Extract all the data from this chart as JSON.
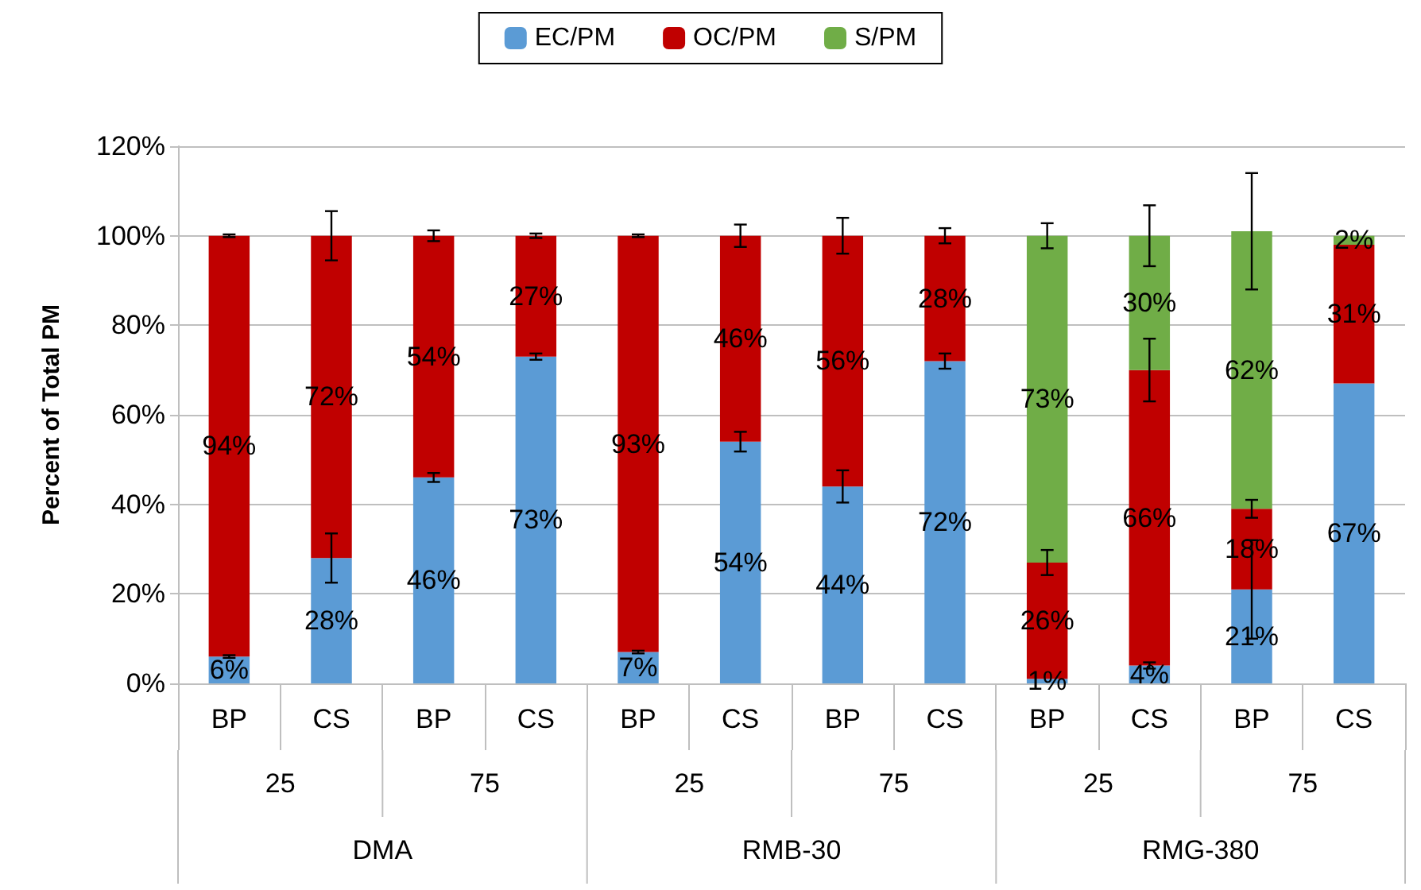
{
  "chart_data": {
    "type": "bar",
    "stacked": true,
    "ylabel": "Percent of Total PM",
    "categories": [
      "BP",
      "CS",
      "BP",
      "CS",
      "BP",
      "CS",
      "BP",
      "CS",
      "BP",
      "CS",
      "BP",
      "CS"
    ],
    "annotations": [
      "25",
      "75",
      "25",
      "75",
      "25",
      "75",
      "DMA",
      "RMB-30",
      "RMG-380"
    ],
    "series": [
      {
        "name": "EC/PM",
        "color": "#5b9bd5",
        "values": [
          6,
          28,
          46,
          73,
          7,
          54,
          44,
          72,
          1,
          4,
          21,
          67
        ],
        "errors": [
          0.3,
          5.5,
          1,
          0.7,
          0.3,
          2.2,
          3.6,
          1.7,
          null,
          0.7,
          11,
          null
        ],
        "value_labels": [
          "6%",
          "28%",
          "46%",
          "73%",
          "7%",
          "54%",
          "44%",
          "72%",
          "1%",
          "4%",
          "21%",
          "67%"
        ]
      },
      {
        "name": "OC/PM",
        "color": "#c00000",
        "values": [
          94,
          72,
          54,
          27,
          93,
          46,
          56,
          28,
          26,
          66,
          18,
          31
        ],
        "errors": [
          0.3,
          5.5,
          1.2,
          0.5,
          0.3,
          2.5,
          4,
          1.7,
          2.8,
          7,
          2,
          null
        ],
        "value_labels": [
          "94%",
          "72%",
          "54%",
          "27%",
          "93%",
          "46%",
          "56%",
          "28%",
          "26%",
          "66%",
          "18%",
          "31%"
        ]
      },
      {
        "name": "S/PM",
        "color": "#70ad47",
        "values": [
          null,
          null,
          null,
          null,
          null,
          null,
          null,
          null,
          73,
          30,
          62,
          2
        ],
        "errors": [
          null,
          null,
          null,
          null,
          null,
          null,
          null,
          null,
          2.8,
          6.8,
          13,
          null
        ],
        "value_labels": [
          null,
          null,
          null,
          null,
          null,
          null,
          null,
          null,
          "73%",
          "30%",
          "62%",
          "2%"
        ]
      }
    ],
    "ylim": [
      0,
      120
    ],
    "yticks": [
      {
        "value": 0,
        "label": "0%"
      },
      {
        "value": 20,
        "label": "20%"
      },
      {
        "value": 40,
        "label": "40%"
      },
      {
        "value": 60,
        "label": "60%"
      },
      {
        "value": 80,
        "label": "80%"
      },
      {
        "value": 100,
        "label": "100%"
      },
      {
        "value": 120,
        "label": "120%"
      }
    ],
    "grid": "y",
    "legend": "top"
  }
}
